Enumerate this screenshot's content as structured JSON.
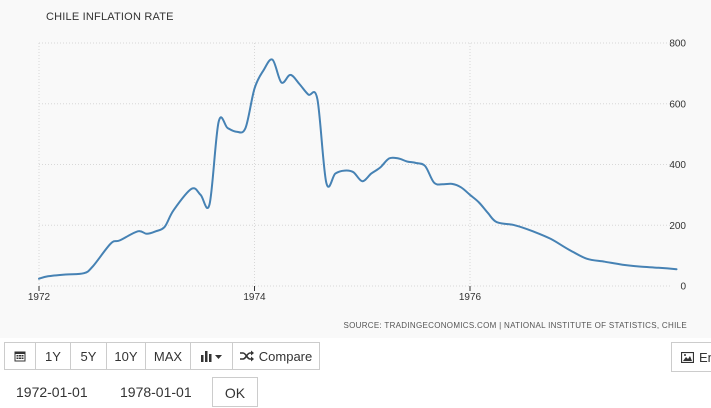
{
  "chart_data": {
    "type": "line",
    "title": "CHILE INFLATION RATE",
    "source": "SOURCE: TRADINGECONOMICS.COM | NATIONAL INSTITUTE OF STATISTICS, CHILE",
    "x_ticks": [
      "1972",
      "1974",
      "1976"
    ],
    "y_ticks": [
      0,
      200,
      400,
      600,
      800
    ],
    "ylim": [
      0,
      800
    ],
    "xlim": [
      "1972-01",
      "1977-12"
    ],
    "grid": true,
    "series": [
      {
        "name": "",
        "color": "#4682b4",
        "x": [
          "1972-01",
          "1972-02",
          "1972-04",
          "1972-06",
          "1972-07",
          "1972-09",
          "1972-10",
          "1972-12",
          "1973-01",
          "1973-02",
          "1973-03",
          "1973-04",
          "1973-06",
          "1973-07",
          "1973-08",
          "1973-09",
          "1973-10",
          "1973-11",
          "1973-12",
          "1974-01",
          "1974-02",
          "1974-03",
          "1974-04",
          "1974-05",
          "1974-06",
          "1974-07",
          "1974-08",
          "1974-09",
          "1974-10",
          "1974-11",
          "1974-12",
          "1975-01",
          "1975-02",
          "1975-03",
          "1975-04",
          "1975-05",
          "1975-06",
          "1975-07",
          "1975-08",
          "1975-09",
          "1975-10",
          "1975-11",
          "1975-12",
          "1976-01",
          "1976-02",
          "1976-03",
          "1976-04",
          "1976-06",
          "1976-08",
          "1976-10",
          "1976-12",
          "1977-02",
          "1977-04",
          "1977-06",
          "1977-08",
          "1977-10",
          "1977-12"
        ],
        "values": [
          24,
          32,
          38,
          42,
          65,
          140,
          150,
          180,
          172,
          180,
          195,
          250,
          320,
          300,
          270,
          540,
          520,
          508,
          520,
          650,
          710,
          745,
          670,
          695,
          665,
          630,
          615,
          340,
          370,
          380,
          375,
          345,
          370,
          390,
          420,
          420,
          410,
          405,
          395,
          340,
          335,
          336,
          325,
          300,
          275,
          240,
          210,
          200,
          180,
          155,
          120,
          90,
          80,
          70,
          64,
          60,
          55
        ]
      }
    ]
  }
}
